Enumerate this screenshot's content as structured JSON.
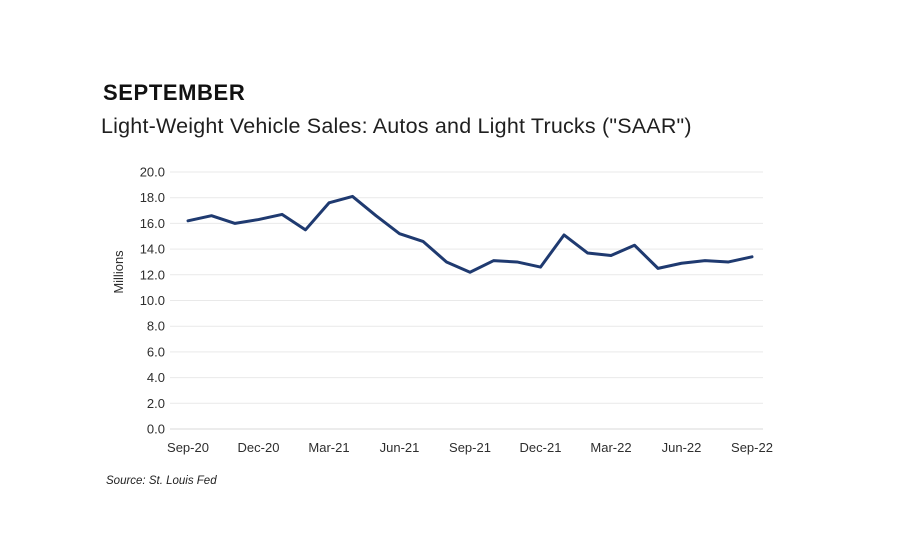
{
  "page": {
    "kicker": "SEPTEMBER",
    "source_note": "Source: St. Louis Fed"
  },
  "chart_data": {
    "type": "line",
    "title": "Light-Weight Vehicle Sales: Autos and Light Trucks (\"SAAR\")",
    "ylabel": "Millions",
    "ylim": [
      0,
      20
    ],
    "ytick_step": 2,
    "ytick_decimal_places": 1,
    "grid": true,
    "legend_position": "none",
    "line_color": "#1f3a70",
    "grid_color": "#e9e9e9",
    "baseline_color": "#d8d8d8",
    "x": [
      "Sep-20",
      "Oct-20",
      "Nov-20",
      "Dec-20",
      "Jan-21",
      "Feb-21",
      "Mar-21",
      "Apr-21",
      "May-21",
      "Jun-21",
      "Jul-21",
      "Aug-21",
      "Sep-21",
      "Oct-21",
      "Nov-21",
      "Dec-21",
      "Jan-22",
      "Feb-22",
      "Mar-22",
      "Apr-22",
      "May-22",
      "Jun-22",
      "Jul-22",
      "Aug-22",
      "Sep-22"
    ],
    "x_tick_labels": [
      "Sep-20",
      "Dec-20",
      "Mar-21",
      "Jun-21",
      "Sep-21",
      "Dec-21",
      "Mar-22",
      "Jun-22",
      "Sep-22"
    ],
    "x_tick_every": 3,
    "series": [
      {
        "name": "Light-Weight Vehicle Sales: Autos and Light Trucks (SAAR, Millions)",
        "values": [
          16.2,
          16.6,
          16.0,
          16.3,
          16.7,
          15.5,
          17.6,
          18.1,
          16.6,
          15.2,
          14.6,
          13.0,
          12.2,
          13.1,
          13.0,
          12.6,
          15.1,
          13.7,
          13.5,
          14.3,
          12.5,
          12.9,
          13.1,
          13.0,
          13.4
        ]
      }
    ]
  }
}
